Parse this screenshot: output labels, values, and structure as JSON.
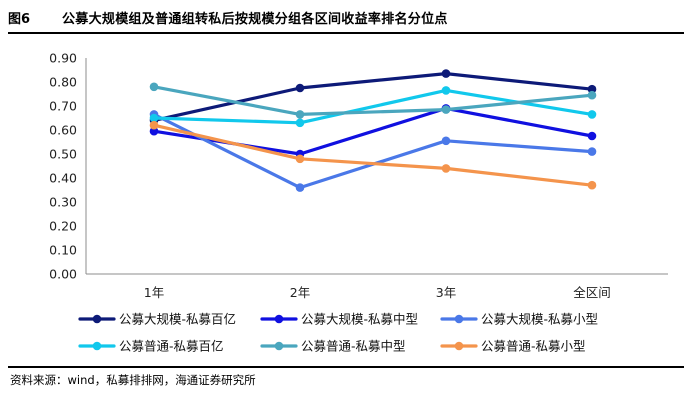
{
  "figure": {
    "label": "图6",
    "title": "公募大规模组及普通组转私后按规模分组各区间收益率排名分位点",
    "source": "资料来源：wind，私募排排网，海通证券研究所"
  },
  "chart_data": {
    "type": "line",
    "categories": [
      "1年",
      "2年",
      "3年",
      "全区间"
    ],
    "ylim": [
      0,
      0.9
    ],
    "yticks": [
      "0.00",
      "0.10",
      "0.20",
      "0.30",
      "0.40",
      "0.50",
      "0.60",
      "0.70",
      "0.80",
      "0.90"
    ],
    "grid": false,
    "legend_position": "bottom",
    "series": [
      {
        "name": "公募大规模-私募百亿",
        "color": "#0d1a78",
        "values": [
          0.64,
          0.775,
          0.835,
          0.77
        ]
      },
      {
        "name": "公募大规模-私募中型",
        "color": "#1010e0",
        "values": [
          0.595,
          0.5,
          0.69,
          0.575
        ]
      },
      {
        "name": "公募大规模-私募小型",
        "color": "#4a78e8",
        "values": [
          0.665,
          0.36,
          0.555,
          0.51
        ]
      },
      {
        "name": "公募普通-私募百亿",
        "color": "#11c8ec",
        "values": [
          0.65,
          0.63,
          0.765,
          0.665
        ]
      },
      {
        "name": "公募普通-私募中型",
        "color": "#4aa6be",
        "values": [
          0.78,
          0.665,
          0.685,
          0.745
        ]
      },
      {
        "name": "公募普通-私募小型",
        "color": "#f4944c",
        "values": [
          0.62,
          0.48,
          0.44,
          0.37
        ]
      }
    ]
  }
}
